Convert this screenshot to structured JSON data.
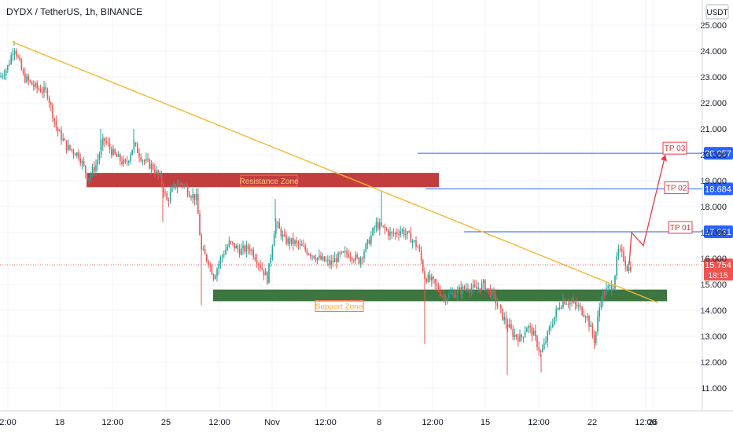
{
  "header": {
    "symbol_title": "DYDX / TetherUS, 1h, BINANCE"
  },
  "axis": {
    "currency": "USDT"
  },
  "colors": {
    "up": "#26a69a",
    "down": "#ef5350",
    "trendline": "#f7b733",
    "resistance_fill": "#b71c1c",
    "support_fill": "#1b5e20",
    "tp_line": "#2962ff",
    "last_price_bg": "#ef5350",
    "tp_badge_bg": "#2962ff",
    "projection": "#f23645",
    "grid": "#f0f3fa",
    "axis_text": "#131722"
  },
  "zones": {
    "resistance": {
      "label": "Resistance Zone",
      "from": 18.75,
      "to": 19.3
    },
    "support": {
      "label": "Support Zone",
      "from": 14.35,
      "to": 14.8
    }
  },
  "targets": [
    {
      "label": "TP 01",
      "price": 17.031,
      "price_label": "17.031"
    },
    {
      "label": "TP 02",
      "price": 18.684,
      "price_label": "18.684"
    },
    {
      "label": "TP 03",
      "price": 20.057,
      "price_label": "20.057"
    }
  ],
  "last_price": {
    "price": 15.754,
    "price_label": "15.754",
    "countdown": "18:15"
  },
  "chart_data": {
    "type": "candlestick",
    "symbol": "DYDX / TetherUS",
    "interval": "1h",
    "exchange": "BINANCE",
    "ylabel": "USDT",
    "ylim": [
      10.3,
      25.4
    ],
    "y_ticks": [
      "25.000",
      "24.000",
      "23.000",
      "22.000",
      "21.000",
      "20.000",
      "19.000",
      "18.000",
      "17.000",
      "16.000",
      "15.000",
      "14.000",
      "13.000",
      "12.000",
      "11.000"
    ],
    "x_ticks": [
      "2:00",
      "18",
      "12:00",
      "25",
      "12:00",
      "Nov",
      "12:00",
      "8",
      "12:00",
      "15",
      "12:00",
      "22",
      "12:00",
      "26"
    ],
    "price_path": [
      [
        0,
        23.0
      ],
      [
        10,
        23.4
      ],
      [
        18,
        24.2
      ],
      [
        30,
        23.0
      ],
      [
        45,
        22.6
      ],
      [
        60,
        22.4
      ],
      [
        72,
        21.0
      ],
      [
        85,
        20.3
      ],
      [
        100,
        20.0
      ],
      [
        112,
        19.1
      ],
      [
        122,
        19.6
      ],
      [
        132,
        20.6
      ],
      [
        145,
        20.0
      ],
      [
        160,
        19.6
      ],
      [
        170,
        20.4
      ],
      [
        182,
        19.8
      ],
      [
        195,
        19.5
      ],
      [
        205,
        19.0
      ],
      [
        212,
        18.2
      ],
      [
        222,
        18.8
      ],
      [
        232,
        18.9
      ],
      [
        242,
        18.5
      ],
      [
        250,
        18.3
      ],
      [
        256,
        16.3
      ],
      [
        265,
        15.9
      ],
      [
        272,
        15.3
      ],
      [
        282,
        16.1
      ],
      [
        292,
        16.6
      ],
      [
        305,
        16.3
      ],
      [
        318,
        16.4
      ],
      [
        330,
        15.8
      ],
      [
        340,
        15.2
      ],
      [
        350,
        17.4
      ],
      [
        362,
        16.7
      ],
      [
        375,
        16.6
      ],
      [
        390,
        16.3
      ],
      [
        405,
        16.0
      ],
      [
        420,
        15.8
      ],
      [
        432,
        16.1
      ],
      [
        444,
        16.2
      ],
      [
        456,
        15.9
      ],
      [
        468,
        16.6
      ],
      [
        478,
        17.3
      ],
      [
        486,
        17.2
      ],
      [
        498,
        16.9
      ],
      [
        510,
        17.1
      ],
      [
        522,
        16.8
      ],
      [
        532,
        16.4
      ],
      [
        540,
        15.3
      ],
      [
        550,
        15.1
      ],
      [
        565,
        14.5
      ],
      [
        580,
        14.7
      ],
      [
        595,
        14.9
      ],
      [
        605,
        14.8
      ],
      [
        615,
        15.0
      ],
      [
        628,
        14.5
      ],
      [
        640,
        13.7
      ],
      [
        652,
        13.1
      ],
      [
        662,
        12.9
      ],
      [
        670,
        13.4
      ],
      [
        678,
        13.1
      ],
      [
        688,
        12.3
      ],
      [
        698,
        13.2
      ],
      [
        708,
        14.0
      ],
      [
        716,
        14.4
      ],
      [
        726,
        14.3
      ],
      [
        736,
        14.1
      ],
      [
        746,
        13.8
      ],
      [
        756,
        12.8
      ],
      [
        764,
        14.5
      ],
      [
        772,
        14.8
      ],
      [
        780,
        15.0
      ],
      [
        786,
        16.3
      ],
      [
        792,
        16.1
      ],
      [
        798,
        15.6
      ],
      [
        804,
        15.75
      ]
    ],
    "trendline": [
      [
        16,
        24.35
      ],
      [
        836,
        14.3
      ]
    ],
    "projection_path": [
      [
        800,
        15.75
      ],
      [
        803,
        17.0
      ],
      [
        818,
        16.5
      ],
      [
        846,
        20.0
      ]
    ],
    "last_price": 15.754,
    "targets": [
      17.031,
      18.684,
      20.057
    ]
  }
}
